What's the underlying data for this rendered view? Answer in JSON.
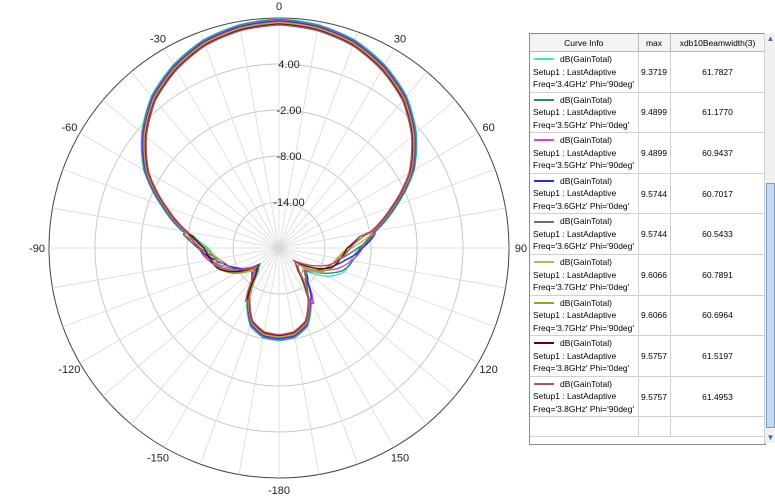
{
  "chart_data": {
    "type": "polar-line",
    "angle_labels": [
      "0",
      "30",
      "60",
      "90",
      "120",
      "150",
      "-180",
      "-150",
      "-120",
      "-90",
      "-60",
      "-30"
    ],
    "angle_values": [
      0,
      30,
      60,
      90,
      120,
      150,
      180,
      -150,
      -120,
      -90,
      -60,
      -30
    ],
    "radial_ticks": [
      "4.00",
      "-2.00",
      "-8.00",
      "-14.00"
    ],
    "radial_tick_values": [
      4,
      -2,
      -8,
      -14
    ],
    "radial_range": [
      -20,
      10
    ],
    "pattern_theta_deg": [
      0,
      10,
      20,
      30,
      40,
      50,
      60,
      70,
      80,
      90,
      100,
      110,
      120,
      130,
      140,
      150,
      160,
      170,
      180
    ],
    "pattern_gain_dB": [
      9.5,
      9.2,
      8.5,
      7.2,
      5.5,
      3.0,
      0.0,
      -4.0,
      -7.5,
      -10.0,
      -11.5,
      -12.5,
      -14.0,
      -16.0,
      -15.0,
      -12.0,
      -9.5,
      -8.5,
      -8.3
    ],
    "series": [
      {
        "name": "dB(GainTotal)",
        "setup": "Setup1 : LastAdaptive",
        "freq": "Freq='3.4GHz' Phi='90deg'",
        "max": "9.3719",
        "beamwidth": "61.7827",
        "color": "#3fe0d8",
        "offset_dB": 0.4
      },
      {
        "name": "dB(GainTotal)",
        "setup": "Setup1 : LastAdaptive",
        "freq": "Freq='3.5GHz' Phi='0deg'",
        "max": "9.4899",
        "beamwidth": "61.1770",
        "color": "#2e8b57",
        "offset_dB": 0.3
      },
      {
        "name": "dB(GainTotal)",
        "setup": "Setup1 : LastAdaptive",
        "freq": "Freq='3.5GHz' Phi='90deg'",
        "max": "9.4899",
        "beamwidth": "60.9437",
        "color": "#e040e0",
        "offset_dB": 0.2
      },
      {
        "name": "dB(GainTotal)",
        "setup": "Setup1 : LastAdaptive",
        "freq": "Freq='3.6GHz' Phi='0deg'",
        "max": "9.5744",
        "beamwidth": "60.7017",
        "color": "#1f2fd0",
        "offset_dB": 0.1
      },
      {
        "name": "dB(GainTotal)",
        "setup": "Setup1 : LastAdaptive",
        "freq": "Freq='3.6GHz' Phi='90deg'",
        "max": "9.5744",
        "beamwidth": "60.5433",
        "color": "#6e6e6e",
        "offset_dB": 0.0
      },
      {
        "name": "dB(GainTotal)",
        "setup": "Setup1 : LastAdaptive",
        "freq": "Freq='3.7GHz' Phi='0deg'",
        "max": "9.6066",
        "beamwidth": "60.7891",
        "color": "#d9a860",
        "offset_dB": -0.1
      },
      {
        "name": "dB(GainTotal)",
        "setup": "Setup1 : LastAdaptive",
        "freq": "Freq='3.7GHz' Phi='90deg'",
        "max": "9.6066",
        "beamwidth": "60.6964",
        "color": "#9aa028",
        "offset_dB": -0.2
      },
      {
        "name": "dB(GainTotal)",
        "setup": "Setup1 : LastAdaptive",
        "freq": "Freq='3.8GHz' Phi='0deg'",
        "max": "9.5757",
        "beamwidth": "61.5197",
        "color": "#5a0a1a",
        "offset_dB": -0.3
      },
      {
        "name": "dB(GainTotal)",
        "setup": "Setup1 : LastAdaptive",
        "freq": "Freq='3.8GHz' Phi='90deg'",
        "max": "9.5757",
        "beamwidth": "61.4953",
        "color": "#b05070",
        "offset_dB": -0.4
      }
    ]
  },
  "legend": {
    "headers": [
      "Curve Info",
      "max",
      "xdb10Beamwidth(3)"
    ]
  },
  "scrollbar": {
    "up_glyph": "▲",
    "down_glyph": "▼"
  }
}
